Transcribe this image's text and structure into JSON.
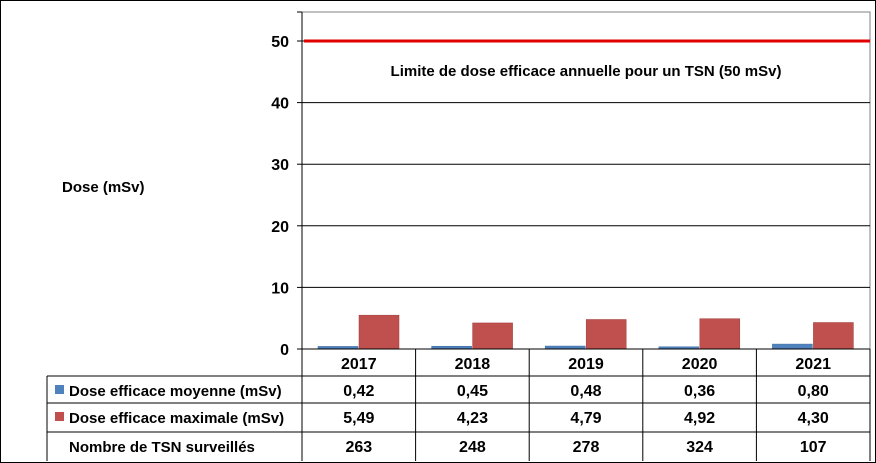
{
  "chart_data": {
    "type": "bar",
    "ylabel": "Dose (mSv)",
    "ylim": [
      0,
      55
    ],
    "y_ticks": [
      "0",
      "10",
      "20",
      "30",
      "40",
      "50"
    ],
    "y_tick_values": [
      0,
      10,
      20,
      30,
      40,
      50
    ],
    "grid": true,
    "categories": [
      "2017",
      "2018",
      "2019",
      "2020",
      "2021"
    ],
    "series": [
      {
        "name": "Dose efficace moyenne (mSv)",
        "color": "#4F81BD",
        "values": [
          0.42,
          0.45,
          0.48,
          0.36,
          0.8
        ],
        "labels": [
          "0,42",
          "0,45",
          "0,48",
          "0,36",
          "0,80"
        ]
      },
      {
        "name": "Dose efficace maximale (mSv)",
        "color": "#C0504D",
        "values": [
          5.49,
          4.23,
          4.79,
          4.92,
          4.3
        ],
        "labels": [
          "5,49",
          "4,23",
          "4,79",
          "4,92",
          "4,30"
        ]
      }
    ],
    "extra_table_row": {
      "name": "Nombre de TSN surveillés",
      "labels": [
        "263",
        "248",
        "278",
        "324",
        "107"
      ]
    },
    "reference_line": {
      "value": 50,
      "color": "#E00000",
      "label": "Limite de dose efficace annuelle pour un TSN (50 mSv)"
    }
  }
}
